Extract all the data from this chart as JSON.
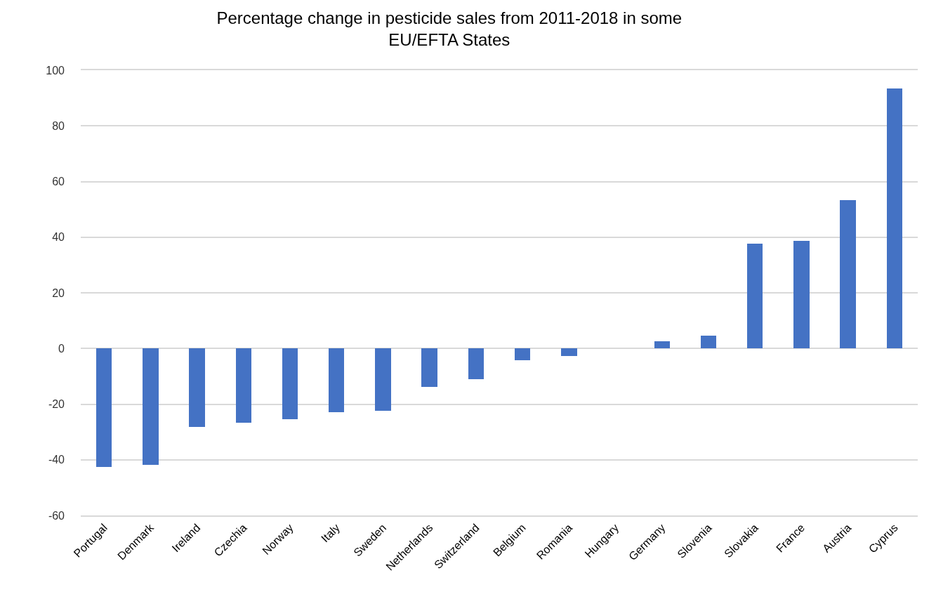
{
  "chart_data": {
    "type": "bar",
    "title": "Percentage change in pesticide sales from 2011-2018 in some EU/EFTA States",
    "categories": [
      "Portugal",
      "Denmark",
      "Ireland",
      "Czechia",
      "Norway",
      "Italy",
      "Sweden",
      "Netherlands",
      "Switzerland",
      "Belgium",
      "Romania",
      "Hungary",
      "Germany",
      "Slovenia",
      "Slovakia",
      "France",
      "Austria",
      "Cyprus"
    ],
    "values": [
      -42.6,
      -41.9,
      -28.3,
      -26.6,
      -25.4,
      -23.0,
      -22.4,
      -13.9,
      -11.0,
      -4.3,
      -2.6,
      0,
      2.5,
      4.5,
      37.6,
      38.6,
      53.2,
      93.5
    ],
    "color": "#4472c4",
    "ylim": [
      -60,
      100
    ],
    "yticks": [
      -60,
      -40,
      -20,
      0,
      20,
      40,
      60,
      80,
      100
    ],
    "grid": "y"
  }
}
